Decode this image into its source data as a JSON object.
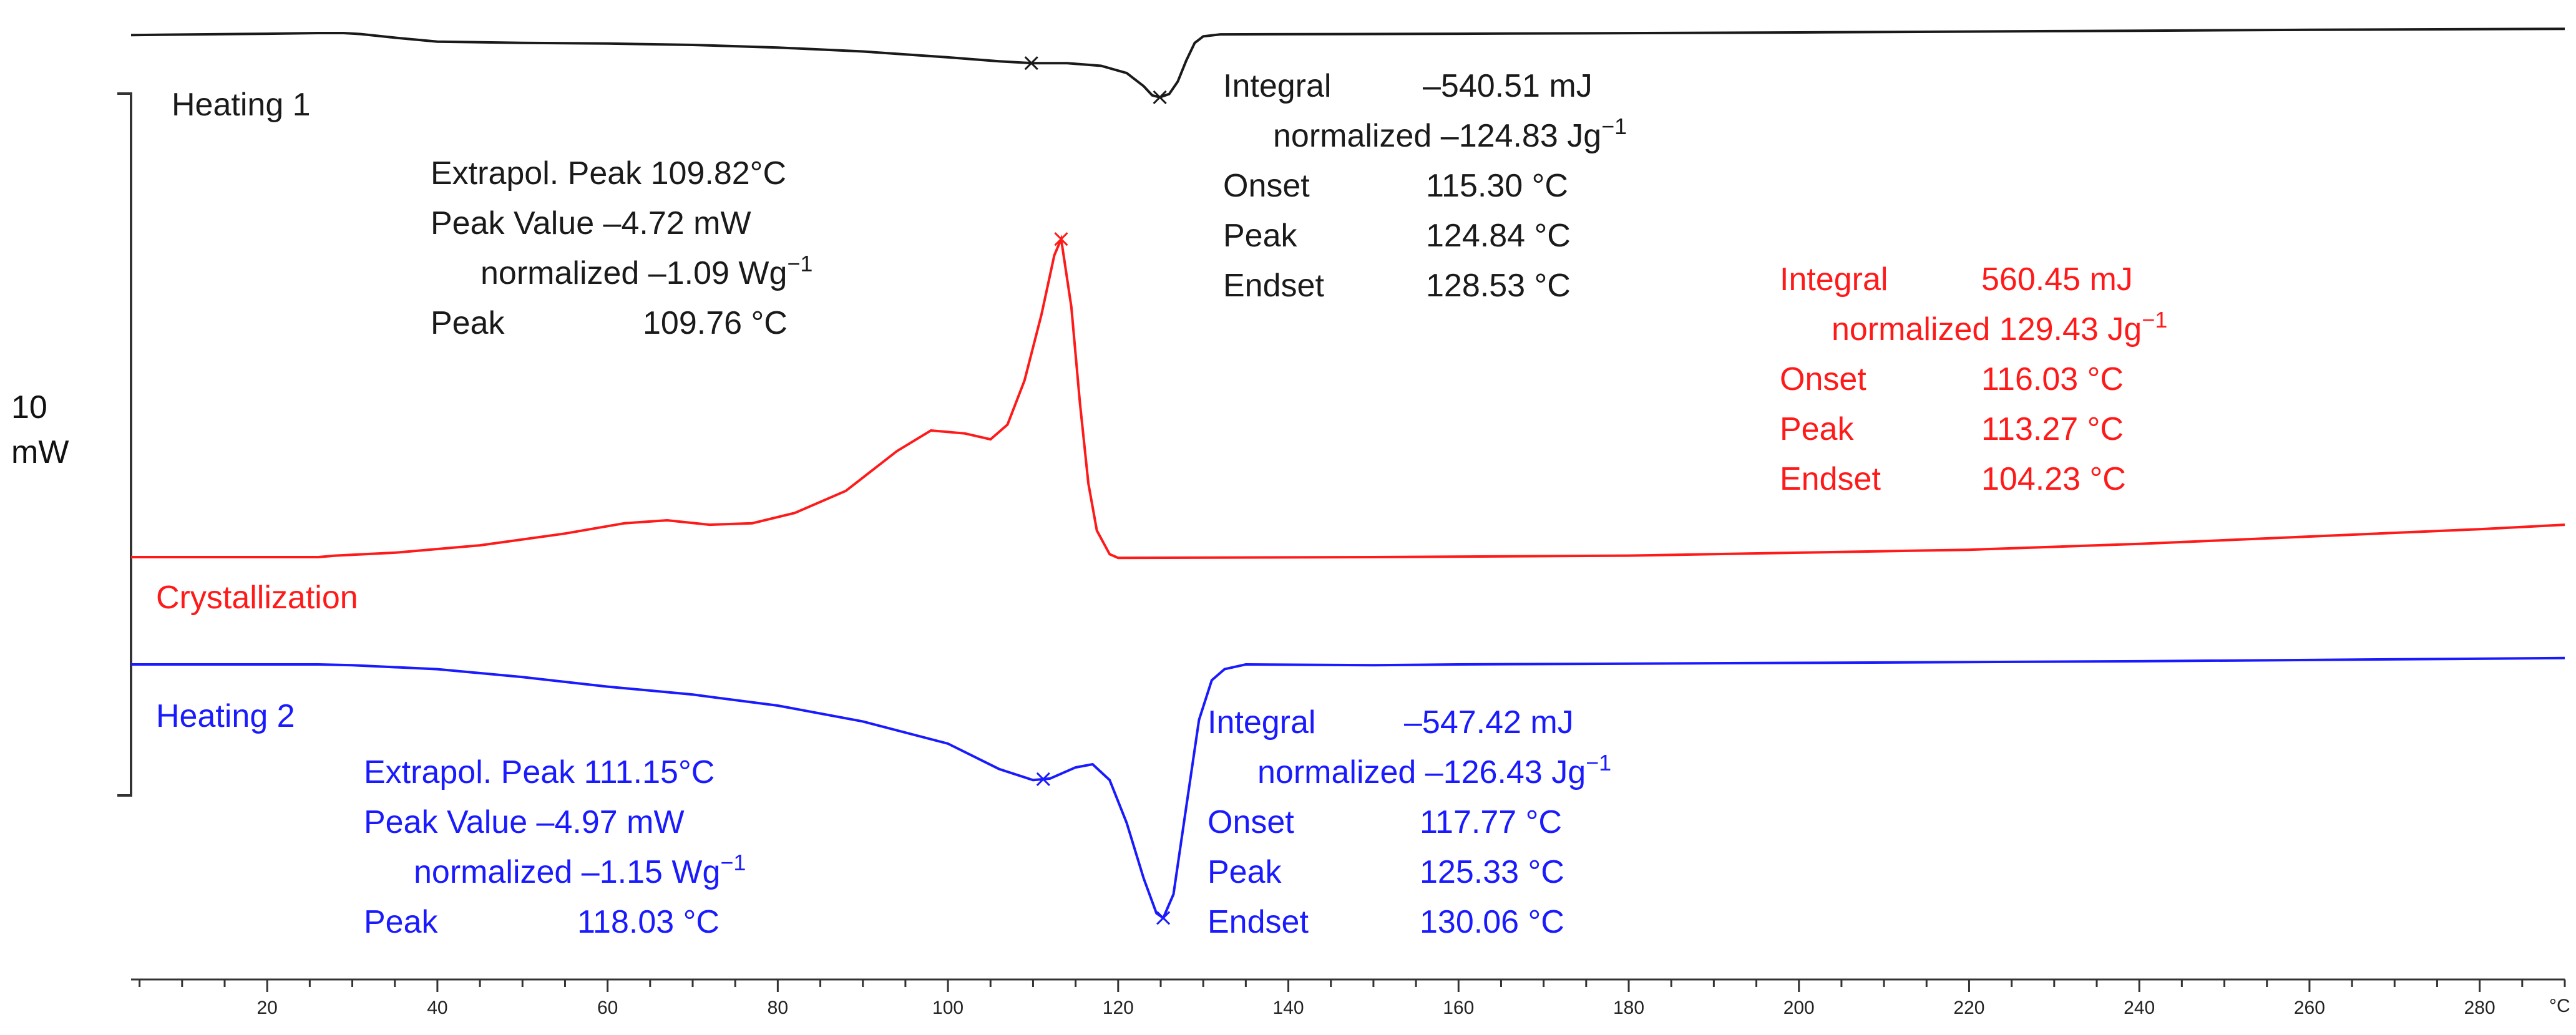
{
  "chart_data": {
    "type": "line",
    "xlabel": "°C",
    "xlim": [
      4,
      290
    ],
    "x_ticks": [
      20,
      40,
      60,
      80,
      100,
      120,
      140,
      160,
      180,
      200,
      220,
      240,
      260,
      280
    ],
    "scale_bar": {
      "value": "10",
      "unit": "mW"
    },
    "series": [
      {
        "name": "Heating 1",
        "color": "#1a1a1a",
        "points": [
          [
            4,
            -0.4
          ],
          [
            20,
            -0.2
          ],
          [
            26,
            -0.1
          ],
          [
            29,
            -0.1
          ],
          [
            31,
            -0.25
          ],
          [
            35,
            -0.8
          ],
          [
            40,
            -1.4
          ],
          [
            50,
            -1.6
          ],
          [
            60,
            -1.7
          ],
          [
            70,
            -1.9
          ],
          [
            80,
            -2.3
          ],
          [
            90,
            -2.9
          ],
          [
            100,
            -3.8
          ],
          [
            106,
            -4.4
          ],
          [
            110,
            -4.7
          ],
          [
            114,
            -4.7
          ],
          [
            118,
            -5.1
          ],
          [
            121,
            -6.2
          ],
          [
            123,
            -8.2
          ],
          [
            124,
            -9.6
          ],
          [
            124.9,
            -9.9
          ],
          [
            126,
            -9.4
          ],
          [
            127,
            -7.5
          ],
          [
            128,
            -4.3
          ],
          [
            129,
            -1.6
          ],
          [
            130,
            -0.6
          ],
          [
            132,
            -0.3
          ],
          [
            160,
            -0.2
          ],
          [
            200,
            0.0
          ],
          [
            230,
            0.2
          ],
          [
            260,
            0.4
          ],
          [
            290,
            0.55
          ]
        ],
        "markers": [
          {
            "x": 109.8
          },
          {
            "x": 124.9
          }
        ]
      },
      {
        "name": "Crystallization",
        "color": "#ff1a1a",
        "points": [
          [
            4,
            0.0
          ],
          [
            26,
            0.0
          ],
          [
            28,
            0.1
          ],
          [
            35,
            0.3
          ],
          [
            45,
            0.8
          ],
          [
            55,
            1.6
          ],
          [
            62,
            2.3
          ],
          [
            67,
            2.5
          ],
          [
            72,
            2.2
          ],
          [
            77,
            2.3
          ],
          [
            82,
            3.0
          ],
          [
            88,
            4.5
          ],
          [
            94,
            7.2
          ],
          [
            98,
            8.6
          ],
          [
            102,
            8.4
          ],
          [
            105,
            8.0
          ],
          [
            107,
            9.0
          ],
          [
            109,
            12.0
          ],
          [
            111,
            16.5
          ],
          [
            112.5,
            20.5
          ],
          [
            113.3,
            21.6
          ],
          [
            114.5,
            17.0
          ],
          [
            115.5,
            10.5
          ],
          [
            116.5,
            5.0
          ],
          [
            117.5,
            1.8
          ],
          [
            119,
            0.2
          ],
          [
            120,
            -0.05
          ],
          [
            150,
            0.0
          ],
          [
            180,
            0.1
          ],
          [
            200,
            0.3
          ],
          [
            220,
            0.5
          ],
          [
            240,
            0.9
          ],
          [
            260,
            1.4
          ],
          [
            280,
            1.9
          ],
          [
            290,
            2.2
          ]
        ],
        "markers": [
          {
            "x": 113.3
          }
        ]
      },
      {
        "name": "Heating 2",
        "color": "#1a1aff",
        "points": [
          [
            4,
            0.0
          ],
          [
            26,
            0.0
          ],
          [
            30,
            -0.05
          ],
          [
            40,
            -0.3
          ],
          [
            50,
            -0.8
          ],
          [
            60,
            -1.4
          ],
          [
            70,
            -1.9
          ],
          [
            80,
            -2.6
          ],
          [
            90,
            -3.6
          ],
          [
            100,
            -5.0
          ],
          [
            106,
            -6.6
          ],
          [
            110,
            -7.3
          ],
          [
            112,
            -7.2
          ],
          [
            115,
            -6.5
          ],
          [
            117,
            -6.3
          ],
          [
            119,
            -7.3
          ],
          [
            121,
            -10.0
          ],
          [
            123,
            -13.5
          ],
          [
            124.5,
            -15.7
          ],
          [
            125.3,
            -16.0
          ],
          [
            126.5,
            -14.5
          ],
          [
            128,
            -9.0
          ],
          [
            129.5,
            -3.5
          ],
          [
            131,
            -1.0
          ],
          [
            132.5,
            -0.3
          ],
          [
            135,
            0.0
          ],
          [
            150,
            -0.05
          ],
          [
            160,
            0.0
          ],
          [
            200,
            0.1
          ],
          [
            240,
            0.2
          ],
          [
            290,
            0.4
          ]
        ],
        "markers": [
          {
            "x": 111.2
          },
          {
            "x": 125.3
          }
        ]
      }
    ],
    "annotations": {
      "heating1_label": "Heating 1",
      "crystallization_label": "Crystallization",
      "heating2_label": "Heating 2",
      "h1_extrapol_peak": "Extrapol. Peak 109.82°C",
      "h1_peak_value": "Peak Value  –4.72 mW",
      "h1_peak_value_norm": "normalized –1.09 Wg",
      "h1_peak_label": "Peak",
      "h1_peak_val": "109.76 °C",
      "h1_integral_label": "Integral",
      "h1_integral_val": "–540.51 mJ",
      "h1_integral_norm": "normalized –124.83 Jg",
      "h1_onset_label": "Onset",
      "h1_onset_val": "115.30 °C",
      "h1_peak2_label": "Peak",
      "h1_peak2_val": "124.84 °C",
      "h1_endset_label": "Endset",
      "h1_endset_val": "128.53 °C",
      "cr_integral_label": "Integral",
      "cr_integral_val": "560.45 mJ",
      "cr_integral_norm": "normalized 129.43 Jg",
      "cr_onset_label": "Onset",
      "cr_onset_val": "116.03 °C",
      "cr_peak_label": "Peak",
      "cr_peak_val": "113.27 °C",
      "cr_endset_label": "Endset",
      "cr_endset_val": "104.23 °C",
      "h2_extrapol_peak": "Extrapol. Peak 111.15°C",
      "h2_peak_value": "Peak Value  –4.97 mW",
      "h2_peak_value_norm": "normalized –1.15 Wg",
      "h2_peak_label": "Peak",
      "h2_peak_val": "118.03 °C",
      "h2_integral_label": "Integral",
      "h2_integral_val": "–547.42 mJ",
      "h2_integral_norm": "normalized –126.43 Jg",
      "h2_onset_label": "Onset",
      "h2_onset_val": "117.77 °C",
      "h2_peak2_label": "Peak",
      "h2_peak2_val": "125.33 °C",
      "h2_endset_label": "Endset",
      "h2_endset_val": "130.06 °C",
      "exponent": "−1"
    },
    "colors": {
      "heating1": "#1a1a1a",
      "crystallization": "#ff1a1a",
      "heating2": "#1a1aff",
      "axis": "#333333"
    }
  }
}
